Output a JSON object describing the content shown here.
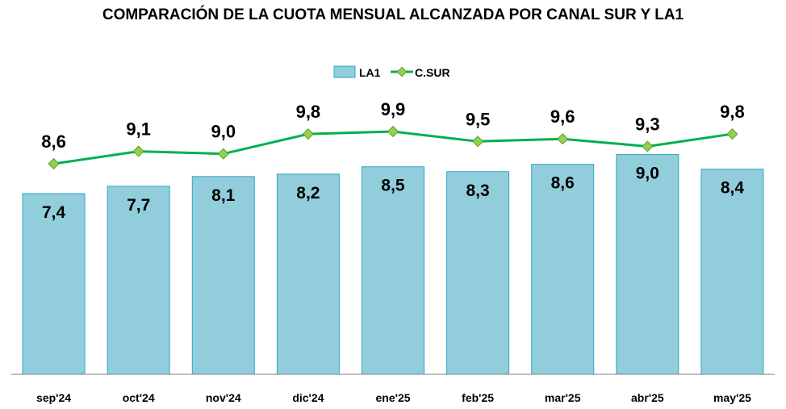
{
  "chart_data": {
    "type": "bar",
    "title": "COMPARACIÓN DE LA CUOTA MENSUAL ALCANZADA POR CANAL SUR Y LA1",
    "categories": [
      "sep'24",
      "oct'24",
      "nov'24",
      "dic'24",
      "ene'25",
      "feb'25",
      "mar'25",
      "abr'25",
      "may'25"
    ],
    "series": [
      {
        "name": "LA1",
        "type": "bar",
        "values": [
          7.4,
          7.7,
          8.1,
          8.2,
          8.5,
          8.3,
          8.6,
          9.0,
          8.4
        ],
        "labels": [
          "7,4",
          "7,7",
          "8,1",
          "8,2",
          "8,5",
          "8,3",
          "8,6",
          "9,0",
          "8,4"
        ],
        "color": "#92CDDC",
        "border": "#31A4C9"
      },
      {
        "name": "C.SUR",
        "type": "line",
        "values": [
          8.6,
          9.1,
          9.0,
          9.8,
          9.9,
          9.5,
          9.6,
          9.3,
          9.8
        ],
        "labels": [
          "8,6",
          "9,1",
          "9,0",
          "9,8",
          "9,9",
          "9,5",
          "9,6",
          "9,3",
          "9,8"
        ],
        "color": "#00B050",
        "marker_color": "#92D050"
      }
    ],
    "ylim": [
      0,
      11
    ],
    "grid": false,
    "legend": "top-center",
    "xlabel": "",
    "ylabel": ""
  }
}
